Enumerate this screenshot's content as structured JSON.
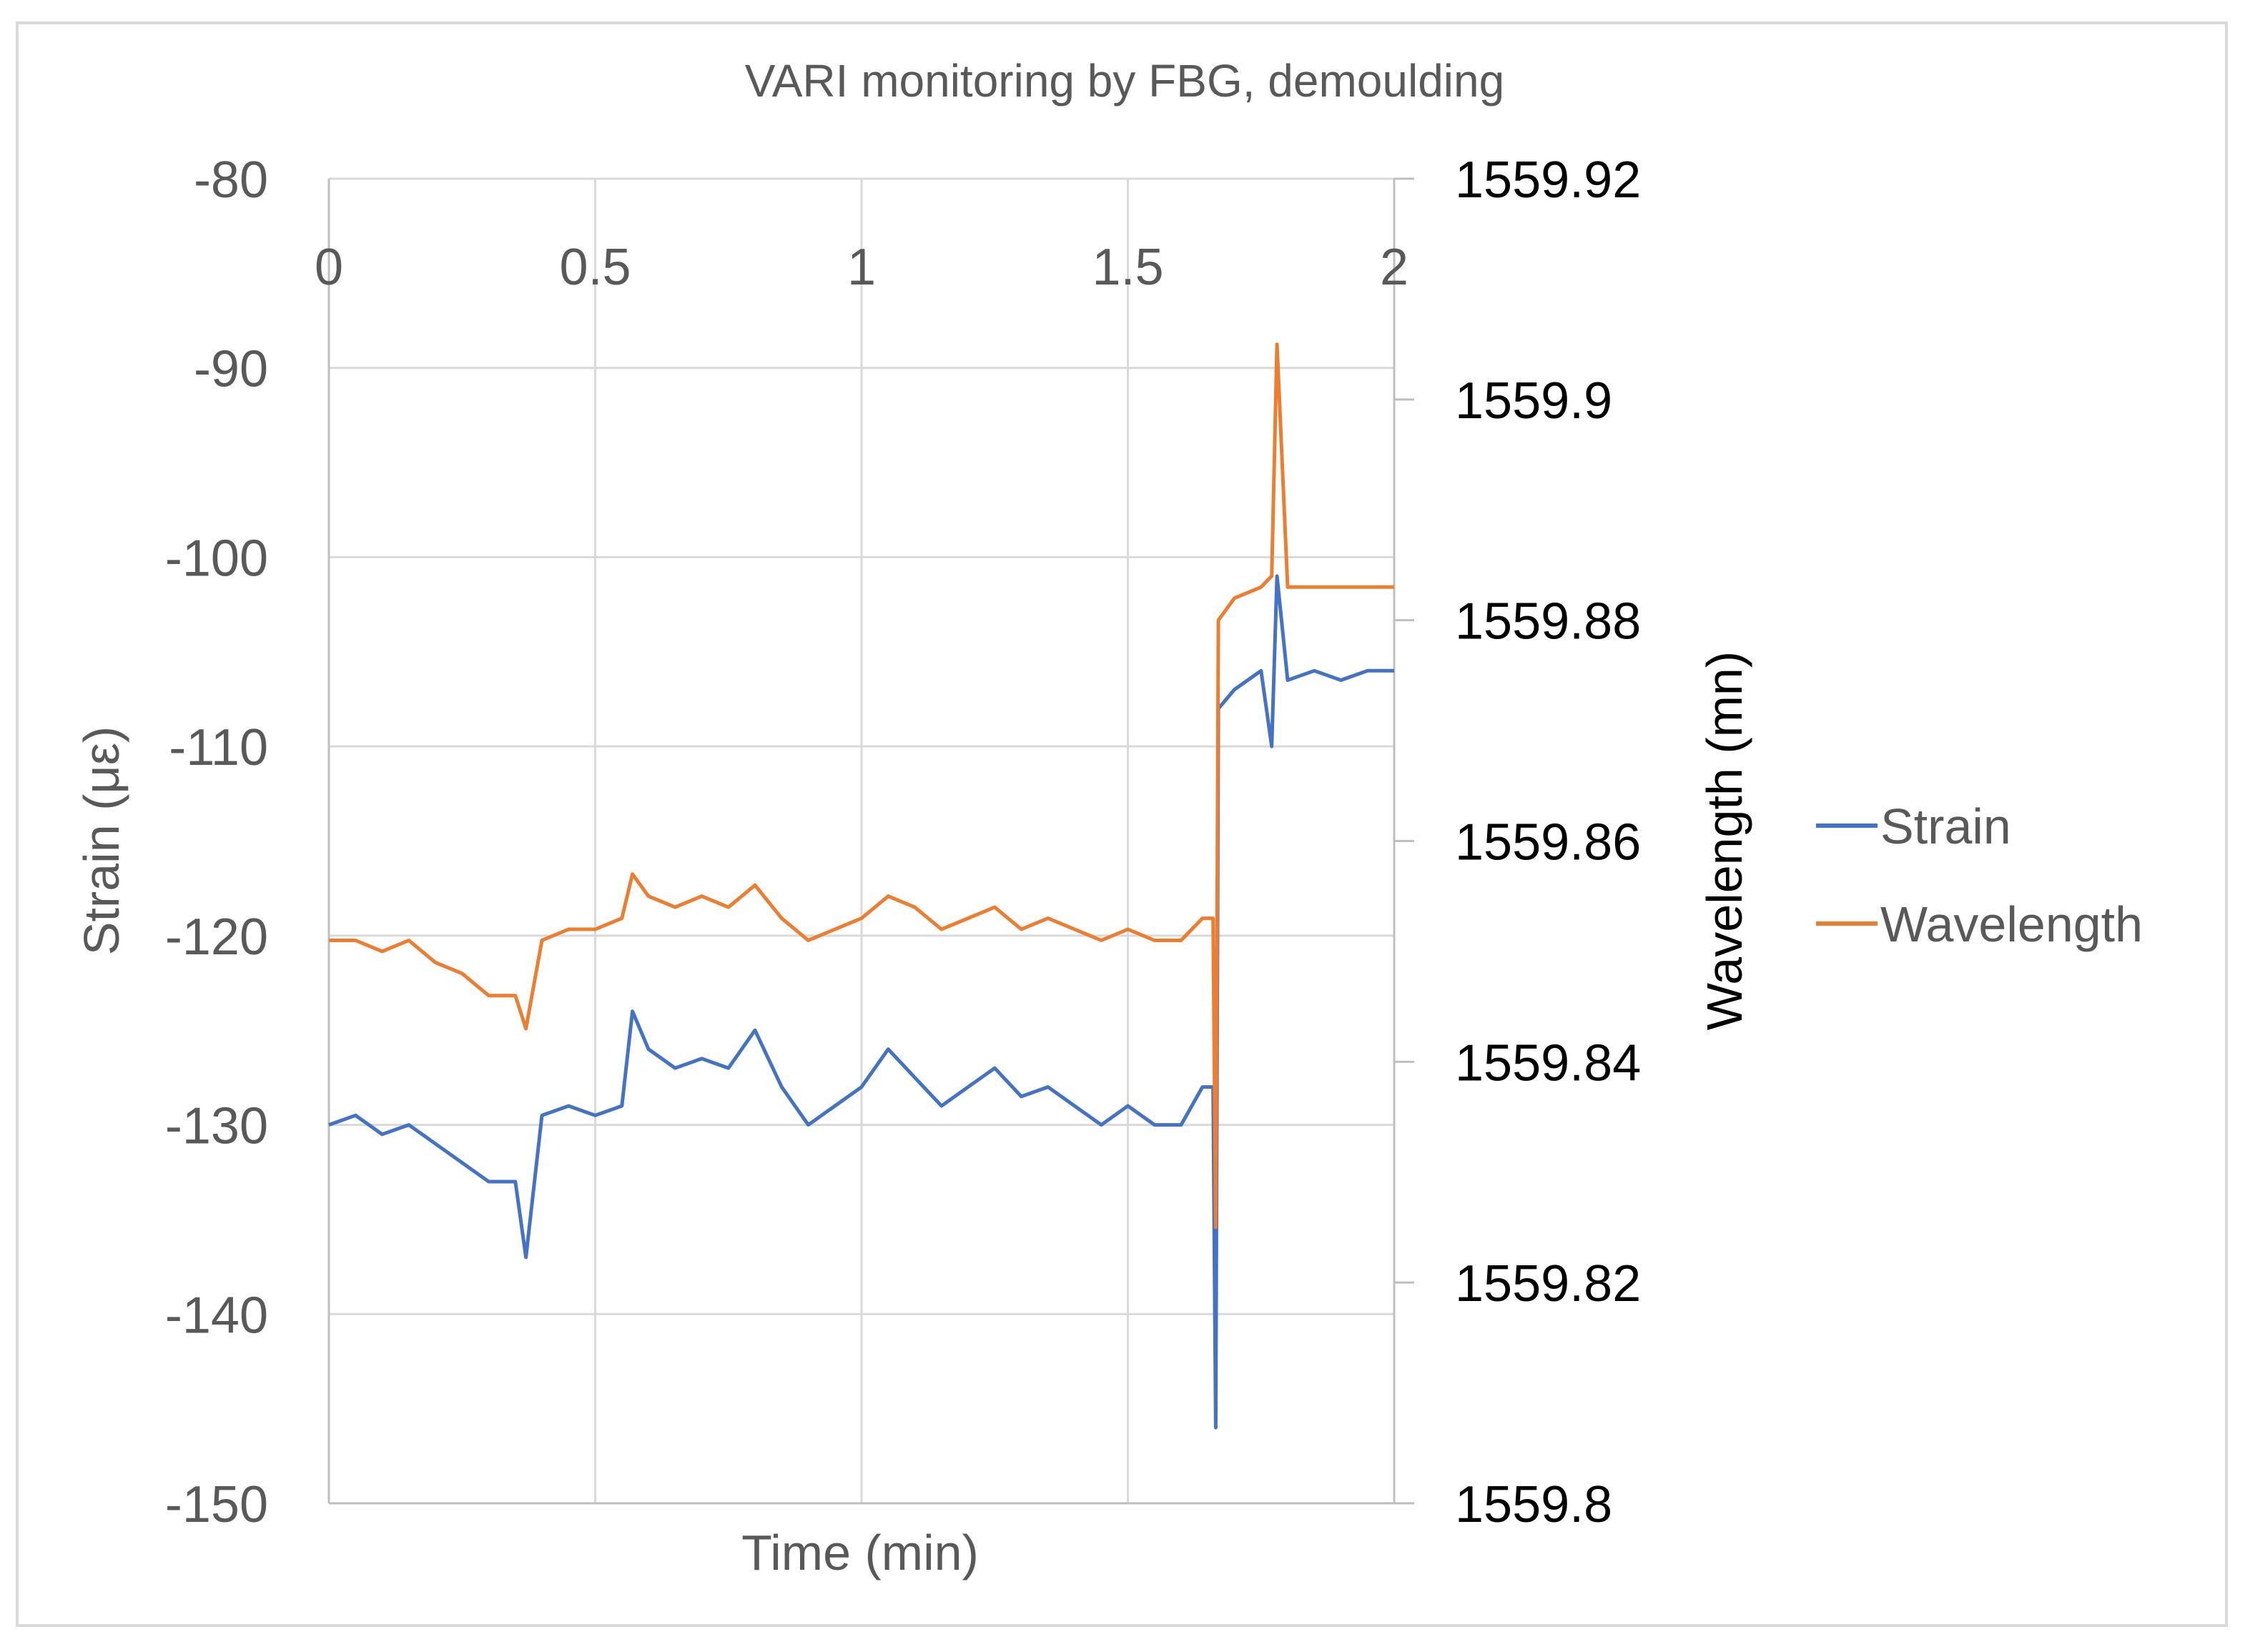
{
  "chart_data": {
    "type": "line",
    "title": "VARI monitoring by FBG, demoulding",
    "xlabel": "Time (min)",
    "ylabel": "Strain (με)",
    "y2label": "Wavelength (mn)",
    "xlim": [
      0,
      2
    ],
    "ylim": [
      -150,
      -80
    ],
    "y2lim": [
      1559.8,
      1559.92
    ],
    "x_ticks": [
      "0",
      "0.5",
      "1",
      "1.5",
      "2"
    ],
    "y_ticks": [
      "-80",
      "-90",
      "-100",
      "-110",
      "-120",
      "-130",
      "-140",
      "-150"
    ],
    "y2_ticks": [
      "1559.92",
      "1559.9",
      "1559.88",
      "1559.86",
      "1559.84",
      "1559.82",
      "1559.8"
    ],
    "x_axis_position": "top",
    "grid": true,
    "legend_position": "right",
    "series": [
      {
        "name": "Strain",
        "axis": "left",
        "color": "#4472C4",
        "x": [
          0,
          0.05,
          0.1,
          0.15,
          0.2,
          0.25,
          0.3,
          0.35,
          0.37,
          0.4,
          0.45,
          0.5,
          0.55,
          0.57,
          0.6,
          0.65,
          0.7,
          0.75,
          0.8,
          0.85,
          0.9,
          0.95,
          1.0,
          1.05,
          1.1,
          1.15,
          1.2,
          1.25,
          1.3,
          1.35,
          1.4,
          1.45,
          1.5,
          1.55,
          1.6,
          1.64,
          1.66,
          1.665,
          1.67,
          1.7,
          1.75,
          1.77,
          1.78,
          1.8,
          1.85,
          1.9,
          1.95,
          2.0
        ],
        "y": [
          -130,
          -129.5,
          -130.5,
          -130,
          -131,
          -132,
          -133,
          -133,
          -137,
          -129.5,
          -129,
          -129.5,
          -129,
          -124,
          -126,
          -127,
          -126.5,
          -127,
          -125,
          -128,
          -130,
          -129,
          -128,
          -126,
          -127.5,
          -129,
          -128,
          -127,
          -128.5,
          -128,
          -129,
          -130,
          -129,
          -130,
          -130,
          -128,
          -128,
          -146,
          -108,
          -107,
          -106,
          -110,
          -101,
          -106.5,
          -106,
          -106.5,
          -106,
          -106
        ]
      },
      {
        "name": "Wavelength",
        "axis": "right",
        "color": "#ED7D31",
        "x": [
          0,
          0.05,
          0.1,
          0.15,
          0.2,
          0.25,
          0.3,
          0.35,
          0.37,
          0.4,
          0.45,
          0.5,
          0.55,
          0.57,
          0.6,
          0.65,
          0.7,
          0.75,
          0.8,
          0.85,
          0.9,
          0.95,
          1.0,
          1.05,
          1.1,
          1.15,
          1.2,
          1.25,
          1.3,
          1.35,
          1.4,
          1.45,
          1.5,
          1.55,
          1.6,
          1.64,
          1.66,
          1.665,
          1.67,
          1.7,
          1.75,
          1.77,
          1.78,
          1.8,
          1.85,
          1.9,
          1.95,
          2.0
        ],
        "y": [
          1559.851,
          1559.851,
          1559.85,
          1559.851,
          1559.849,
          1559.848,
          1559.846,
          1559.846,
          1559.843,
          1559.851,
          1559.852,
          1559.852,
          1559.853,
          1559.857,
          1559.855,
          1559.854,
          1559.855,
          1559.854,
          1559.856,
          1559.853,
          1559.851,
          1559.852,
          1559.853,
          1559.855,
          1559.854,
          1559.852,
          1559.853,
          1559.854,
          1559.852,
          1559.853,
          1559.852,
          1559.851,
          1559.852,
          1559.851,
          1559.851,
          1559.853,
          1559.853,
          1559.825,
          1559.88,
          1559.882,
          1559.883,
          1559.884,
          1559.905,
          1559.883,
          1559.883,
          1559.883,
          1559.883,
          1559.883
        ]
      }
    ]
  }
}
